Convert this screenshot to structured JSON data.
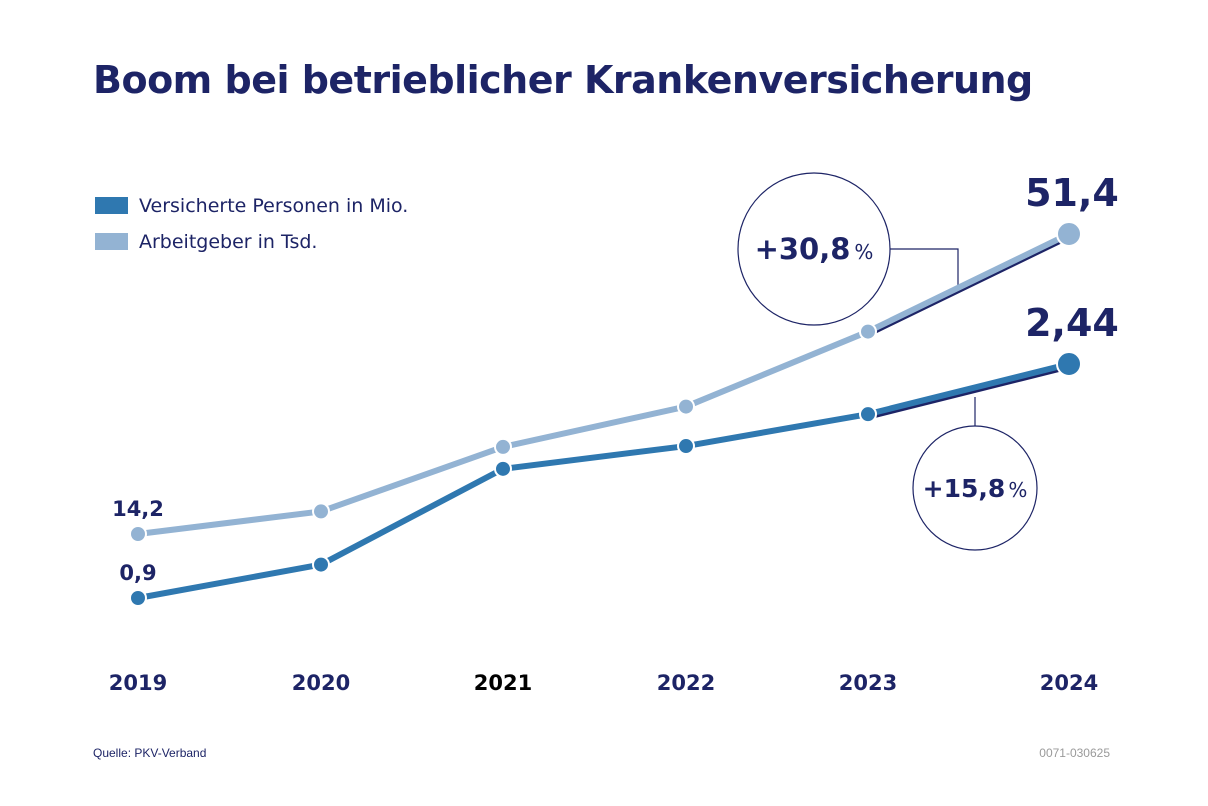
{
  "title": "Boom bei betrieblicher Krankenversicherung",
  "source": "Quelle: PKV-Verband",
  "code": "0071-030625",
  "colors": {
    "text": "#1d2466",
    "versicherte": "#2f78b0",
    "arbeitgeber": "#93b3d3",
    "accent": "#1d2466"
  },
  "legend": [
    {
      "label": "Versicherte Personen in Mio.",
      "color": "#2f78b0"
    },
    {
      "label": "Arbeitgeber in Tsd.",
      "color": "#93b3d3"
    }
  ],
  "bubbles": {
    "arbeitgeber": {
      "value": "+30,8",
      "unit": "%"
    },
    "versicherte": {
      "value": "+15,8",
      "unit": "%"
    }
  },
  "chart_data": {
    "type": "line",
    "title": "Boom bei betrieblicher Krankenversicherung",
    "xlabel": "",
    "ylabel": "",
    "x": [
      "2019",
      "2020",
      "2021",
      "2022",
      "2023",
      "2024"
    ],
    "highlight_year": "2021",
    "grid": false,
    "legend_position": "top-left",
    "series": [
      {
        "name": "Arbeitgeber in Tsd.",
        "values": [
          14.2,
          17.0,
          25.0,
          30.0,
          39.3,
          51.4
        ],
        "labels": {
          "first": "14,2",
          "last": "51,4"
        },
        "change_last_year": "+30,8 %",
        "color": "#93b3d3"
      },
      {
        "name": "Versicherte Personen in Mio.",
        "values": [
          0.9,
          1.12,
          1.75,
          1.9,
          2.11,
          2.44
        ],
        "labels": {
          "first": "0,9",
          "last": "2,44"
        },
        "change_last_year": "+15,8 %",
        "color": "#2f78b0"
      }
    ]
  }
}
